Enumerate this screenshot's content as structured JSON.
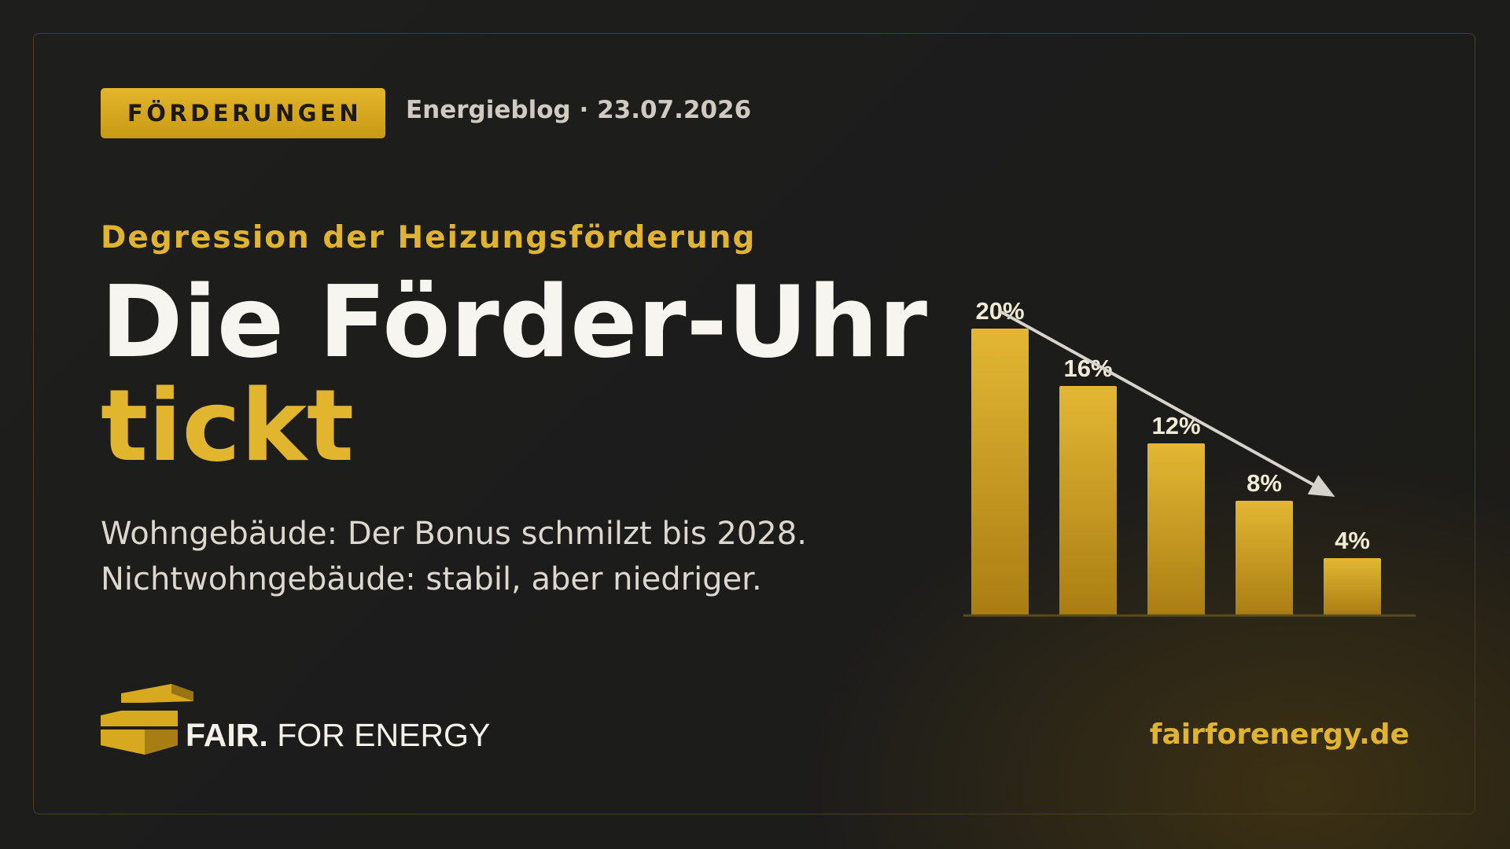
{
  "tag": "FÖRDERUNGEN",
  "meta": "Energieblog · 23.07.2026",
  "kicker": "Degression der Heizungsförderung",
  "headline": {
    "line1": "Die Förder-Uhr",
    "line2": "tickt"
  },
  "lede": {
    "line1": "Wohngebäude: Der Bonus schmilzt bis 2028.",
    "line2": "Nichtwohngebäude: stabil, aber niedriger."
  },
  "brand": {
    "name_strong": "FAIR.",
    "name_rest": "FOR ENERGY",
    "website": "fairforenergy.de"
  },
  "colors": {
    "accent": "#e2b52f",
    "text": "#f7f5ef",
    "background": "#1d1d1c"
  },
  "chart_data": {
    "type": "bar",
    "categories": [
      "",
      "",
      "",
      "",
      ""
    ],
    "values": [
      20,
      16,
      12,
      8,
      4
    ],
    "data_labels": [
      "20%",
      "16%",
      "12%",
      "8%",
      "4%"
    ],
    "ylim": [
      0,
      20
    ],
    "grid": false,
    "legend": "none",
    "annotation": "arrow-descending"
  }
}
